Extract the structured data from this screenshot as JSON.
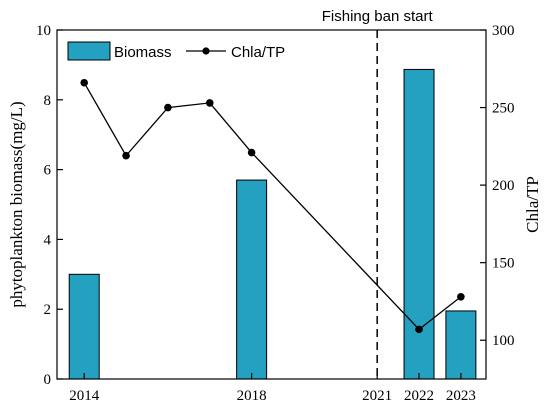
{
  "chart_data": {
    "type": "bar",
    "x_ticks": [
      2014,
      2018,
      2021,
      2022,
      2023
    ],
    "xlim": [
      2013.35,
      2023.6
    ],
    "series": [
      {
        "name": "Biomass",
        "kind": "bar",
        "axis": "left",
        "color": "#24a0c0",
        "points": [
          {
            "x": 2014,
            "y": 3.0
          },
          {
            "x": 2018,
            "y": 5.7
          },
          {
            "x": 2022,
            "y": 8.87
          },
          {
            "x": 2023,
            "y": 1.95
          }
        ]
      },
      {
        "name": "Chla/TP",
        "kind": "line",
        "axis": "right",
        "color": "#000000",
        "points": [
          {
            "x": 2014,
            "y": 266
          },
          {
            "x": 2015,
            "y": 219
          },
          {
            "x": 2016,
            "y": 250
          },
          {
            "x": 2017,
            "y": 253
          },
          {
            "x": 2018,
            "y": 221
          },
          {
            "x": 2022,
            "y": 107
          },
          {
            "x": 2023,
            "y": 128
          }
        ]
      }
    ],
    "y_left": {
      "label": "phytoplankton biomass(mg/L)",
      "lim": [
        0,
        10
      ],
      "ticks": [
        0,
        2,
        4,
        6,
        8,
        10
      ]
    },
    "y_right": {
      "label": "Chla/TP",
      "lim": [
        75,
        300
      ],
      "ticks": [
        100,
        150,
        200,
        250,
        300
      ]
    },
    "annotations": [
      {
        "text": "Fishing ban start",
        "x": 2021,
        "style": "dashed vertical line"
      }
    ],
    "legend": {
      "placement": "top-left",
      "entries": [
        "Biomass",
        "Chla/TP"
      ]
    },
    "grid": false
  }
}
